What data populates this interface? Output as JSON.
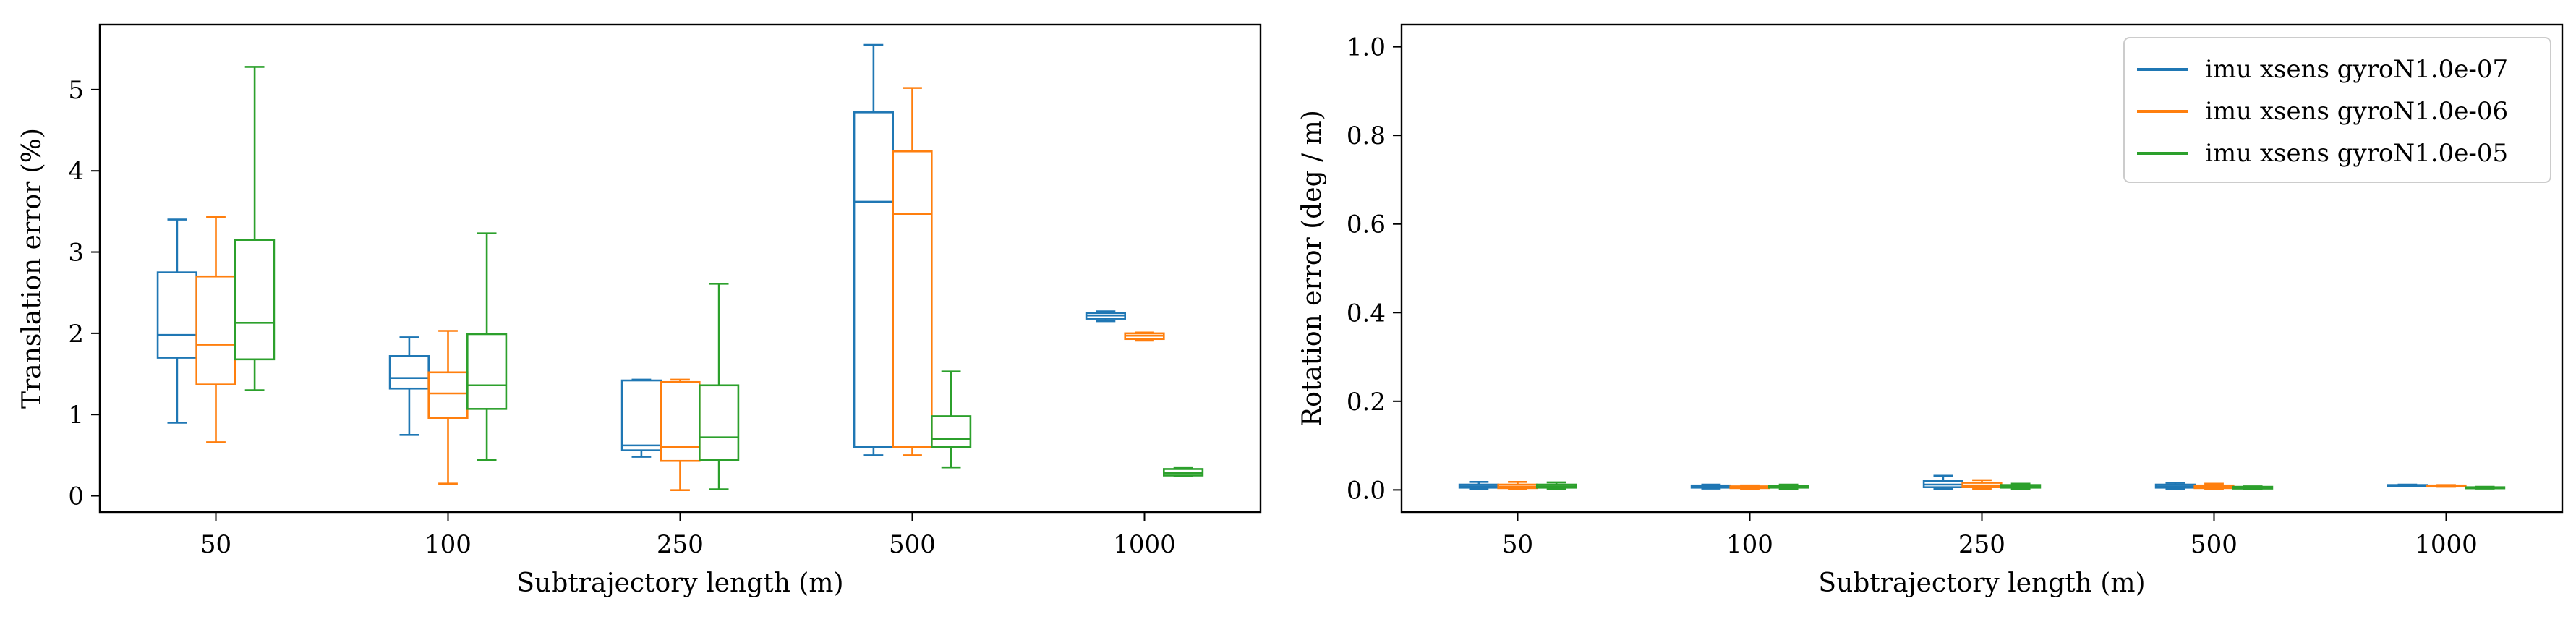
{
  "chart_data": [
    {
      "type": "box",
      "xlabel": "Subtrajectory length (m)",
      "ylabel": "Translation error (%)",
      "categories": [
        "50",
        "100",
        "250",
        "500",
        "1000"
      ],
      "ylim": [
        -0.2,
        5.8
      ],
      "yticks": [
        0,
        1,
        2,
        3,
        4,
        5
      ],
      "grid": false,
      "series": [
        {
          "name": "imu xsens gyroN1.0e-07",
          "color": "#1f77b4",
          "boxes": [
            {
              "whislo": 0.9,
              "q1": 1.7,
              "med": 1.98,
              "q3": 2.75,
              "whishi": 3.4
            },
            {
              "whislo": 0.75,
              "q1": 1.32,
              "med": 1.45,
              "q3": 1.72,
              "whishi": 1.95
            },
            {
              "whislo": 0.48,
              "q1": 0.56,
              "med": 0.62,
              "q3": 1.42,
              "whishi": 1.43
            },
            {
              "whislo": 0.5,
              "q1": 0.6,
              "med": 3.62,
              "q3": 4.72,
              "whishi": 5.55
            },
            {
              "whislo": 2.15,
              "q1": 2.18,
              "med": 2.22,
              "q3": 2.25,
              "whishi": 2.27
            }
          ]
        },
        {
          "name": "imu xsens gyroN1.0e-06",
          "color": "#ff7f0e",
          "boxes": [
            {
              "whislo": 0.66,
              "q1": 1.37,
              "med": 1.86,
              "q3": 2.7,
              "whishi": 3.43
            },
            {
              "whislo": 0.15,
              "q1": 0.96,
              "med": 1.26,
              "q3": 1.52,
              "whishi": 2.03
            },
            {
              "whislo": 0.07,
              "q1": 0.43,
              "med": 0.6,
              "q3": 1.4,
              "whishi": 1.43
            },
            {
              "whislo": 0.5,
              "q1": 0.6,
              "med": 3.47,
              "q3": 4.24,
              "whishi": 5.02
            },
            {
              "whislo": 1.91,
              "q1": 1.93,
              "med": 1.97,
              "q3": 2.0,
              "whishi": 2.01
            }
          ]
        },
        {
          "name": "imu xsens gyroN1.0e-05",
          "color": "#2ca02c",
          "boxes": [
            {
              "whislo": 1.3,
              "q1": 1.68,
              "med": 2.13,
              "q3": 3.15,
              "whishi": 5.28
            },
            {
              "whislo": 0.44,
              "q1": 1.07,
              "med": 1.36,
              "q3": 1.99,
              "whishi": 3.23
            },
            {
              "whislo": 0.08,
              "q1": 0.44,
              "med": 0.72,
              "q3": 1.36,
              "whishi": 2.61
            },
            {
              "whislo": 0.35,
              "q1": 0.6,
              "med": 0.7,
              "q3": 0.98,
              "whishi": 1.53
            },
            {
              "whislo": 0.24,
              "q1": 0.25,
              "med": 0.28,
              "q3": 0.33,
              "whishi": 0.35
            }
          ]
        }
      ]
    },
    {
      "type": "box",
      "xlabel": "Subtrajectory length (m)",
      "ylabel": "Rotation error (deg / m)",
      "categories": [
        "50",
        "100",
        "250",
        "500",
        "1000"
      ],
      "ylim": [
        -0.05,
        1.05
      ],
      "yticks": [
        "0.0",
        "0.2",
        "0.4",
        "0.6",
        "0.8",
        "1.0"
      ],
      "grid": false,
      "legend_position": "top-right",
      "series": [
        {
          "name": "imu xsens gyroN1.0e-07",
          "color": "#1f77b4",
          "boxes": [
            {
              "whislo": 0.002,
              "q1": 0.005,
              "med": 0.008,
              "q3": 0.012,
              "whishi": 0.018
            },
            {
              "whislo": 0.003,
              "q1": 0.005,
              "med": 0.007,
              "q3": 0.01,
              "whishi": 0.012
            },
            {
              "whislo": 0.002,
              "q1": 0.006,
              "med": 0.012,
              "q3": 0.02,
              "whishi": 0.032
            },
            {
              "whislo": 0.002,
              "q1": 0.005,
              "med": 0.008,
              "q3": 0.012,
              "whishi": 0.016
            },
            {
              "whislo": 0.008,
              "q1": 0.009,
              "med": 0.01,
              "q3": 0.011,
              "whishi": 0.012
            }
          ]
        },
        {
          "name": "imu xsens gyroN1.0e-06",
          "color": "#ff7f0e",
          "boxes": [
            {
              "whislo": 0.001,
              "q1": 0.004,
              "med": 0.007,
              "q3": 0.012,
              "whishi": 0.018
            },
            {
              "whislo": 0.002,
              "q1": 0.004,
              "med": 0.006,
              "q3": 0.008,
              "whishi": 0.01
            },
            {
              "whislo": 0.002,
              "q1": 0.006,
              "med": 0.01,
              "q3": 0.016,
              "whishi": 0.022
            },
            {
              "whislo": 0.002,
              "q1": 0.004,
              "med": 0.007,
              "q3": 0.01,
              "whishi": 0.014
            },
            {
              "whislo": 0.007,
              "q1": 0.008,
              "med": 0.009,
              "q3": 0.01,
              "whishi": 0.011
            }
          ]
        },
        {
          "name": "imu xsens gyroN1.0e-05",
          "color": "#2ca02c",
          "boxes": [
            {
              "whislo": 0.001,
              "q1": 0.005,
              "med": 0.008,
              "q3": 0.012,
              "whishi": 0.017
            },
            {
              "whislo": 0.002,
              "q1": 0.005,
              "med": 0.007,
              "q3": 0.009,
              "whishi": 0.012
            },
            {
              "whislo": 0.002,
              "q1": 0.005,
              "med": 0.008,
              "q3": 0.011,
              "whishi": 0.014
            },
            {
              "whislo": 0.001,
              "q1": 0.003,
              "med": 0.005,
              "q3": 0.007,
              "whishi": 0.008
            },
            {
              "whislo": 0.003,
              "q1": 0.004,
              "med": 0.005,
              "q3": 0.006,
              "whishi": 0.007
            }
          ]
        }
      ]
    }
  ]
}
